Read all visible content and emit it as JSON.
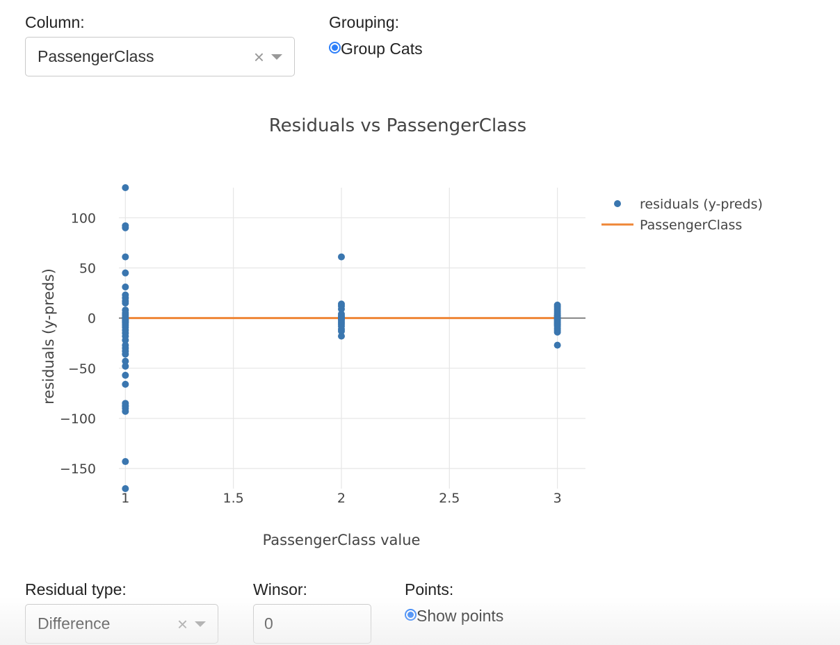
{
  "top": {
    "column_label": "Column:",
    "column_value": "PassengerClass",
    "grouping_label": "Grouping:",
    "grouping_option": "Group Cats"
  },
  "bottom": {
    "residual_type_label": "Residual type:",
    "residual_type_value": "Difference",
    "winsor_label": "Winsor:",
    "winsor_value": "0",
    "points_label": "Points:",
    "points_option": "Show points"
  },
  "icons": {
    "clear": "×",
    "caret": "chevron-down-icon"
  },
  "colors": {
    "radio": "#2d7ff9",
    "points": "#3a76af",
    "line": "#ef8636"
  },
  "chart_data": {
    "type": "scatter",
    "title": "Residuals vs PassengerClass",
    "xlabel": "PassengerClass value",
    "ylabel": "residuals (y-preds)",
    "xlim": [
      0.97,
      3.13
    ],
    "ylim": [
      -170,
      130
    ],
    "xticks": [
      1,
      1.5,
      2,
      2.5,
      3
    ],
    "xtick_labels": [
      "1",
      "1.5",
      "2",
      "2.5",
      "3"
    ],
    "yticks": [
      100,
      50,
      0,
      -50,
      -100,
      -150
    ],
    "ytick_labels": [
      "100",
      "50",
      "0",
      "−50",
      "−100",
      "−150"
    ],
    "legend_position": "top-right",
    "series": [
      {
        "name": "residuals (y-preds)",
        "mode": "markers",
        "color": "#3a76af",
        "x": [
          1,
          1,
          1,
          1,
          1,
          1,
          1,
          1,
          1,
          1,
          1,
          1,
          1,
          1,
          1,
          1,
          1,
          1,
          1,
          1,
          1,
          1,
          1,
          1,
          1,
          1,
          1,
          1,
          1,
          1,
          1,
          1,
          1,
          1,
          1,
          1,
          1,
          1,
          1,
          1,
          2,
          2,
          2,
          2,
          2,
          2,
          2,
          2,
          2,
          2,
          2,
          2,
          2,
          2,
          2,
          2,
          3,
          3,
          3,
          3,
          3,
          3,
          3,
          3,
          3,
          3,
          3,
          3,
          3,
          3,
          3,
          3,
          3,
          3,
          3,
          3,
          3
        ],
        "y": [
          130,
          92,
          90,
          61,
          45,
          31,
          23,
          20,
          17,
          15,
          8,
          5,
          3,
          1,
          -1,
          -3,
          -5,
          -7,
          -9,
          -12,
          -15,
          -18,
          -22,
          -27,
          -30,
          -33,
          -36,
          -43,
          -48,
          -57,
          -66,
          -85,
          -87,
          -88,
          -90,
          -93,
          -143,
          -171,
          -2,
          -4,
          61,
          14,
          12,
          9,
          4,
          2,
          1,
          0,
          -1,
          -2,
          -4,
          -6,
          -8,
          -11,
          -13,
          -18,
          13,
          11,
          9,
          7,
          5,
          3,
          2,
          1,
          0,
          -1,
          -2,
          -3,
          -4,
          -5,
          -6,
          -7,
          -8,
          -10,
          -12,
          -14,
          -27
        ]
      },
      {
        "name": "PassengerClass",
        "mode": "lines",
        "color": "#ef8636",
        "x": [
          1,
          2,
          3
        ],
        "y": [
          0,
          0,
          0
        ]
      }
    ]
  }
}
